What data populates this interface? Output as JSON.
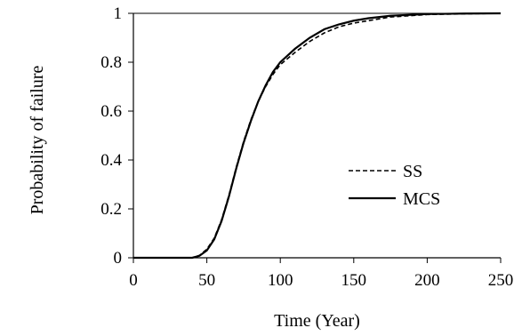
{
  "chart_data": {
    "type": "line",
    "xlabel": "Time (Year)",
    "ylabel": "Probability of failure",
    "xlim": [
      0,
      250
    ],
    "ylim": [
      0,
      1
    ],
    "xticks": [
      "0",
      "50",
      "100",
      "150",
      "200",
      "250"
    ],
    "yticks": [
      "0",
      "0.2",
      "0.4",
      "0.6",
      "0.8",
      "1"
    ],
    "grid": false,
    "legend_position": "center-right",
    "series": [
      {
        "name": "SS",
        "style": "dashed",
        "color": "#000000",
        "x": [
          0,
          40,
          45,
          50,
          55,
          60,
          65,
          70,
          75,
          80,
          85,
          90,
          95,
          100,
          110,
          120,
          130,
          140,
          150,
          160,
          175,
          200,
          225,
          250
        ],
        "y": [
          0,
          0,
          0.01,
          0.035,
          0.08,
          0.155,
          0.255,
          0.37,
          0.475,
          0.565,
          0.64,
          0.7,
          0.75,
          0.79,
          0.84,
          0.885,
          0.92,
          0.945,
          0.96,
          0.97,
          0.985,
          0.995,
          0.998,
          1.0
        ]
      },
      {
        "name": "MCS",
        "style": "solid",
        "color": "#000000",
        "x": [
          0,
          40,
          45,
          50,
          55,
          60,
          65,
          70,
          75,
          80,
          85,
          90,
          95,
          100,
          110,
          120,
          130,
          140,
          150,
          160,
          175,
          200,
          225,
          250
        ],
        "y": [
          0,
          0,
          0.008,
          0.03,
          0.075,
          0.15,
          0.25,
          0.365,
          0.47,
          0.56,
          0.64,
          0.705,
          0.76,
          0.8,
          0.855,
          0.9,
          0.935,
          0.955,
          0.97,
          0.98,
          0.99,
          0.997,
          0.999,
          1.0
        ]
      }
    ]
  }
}
